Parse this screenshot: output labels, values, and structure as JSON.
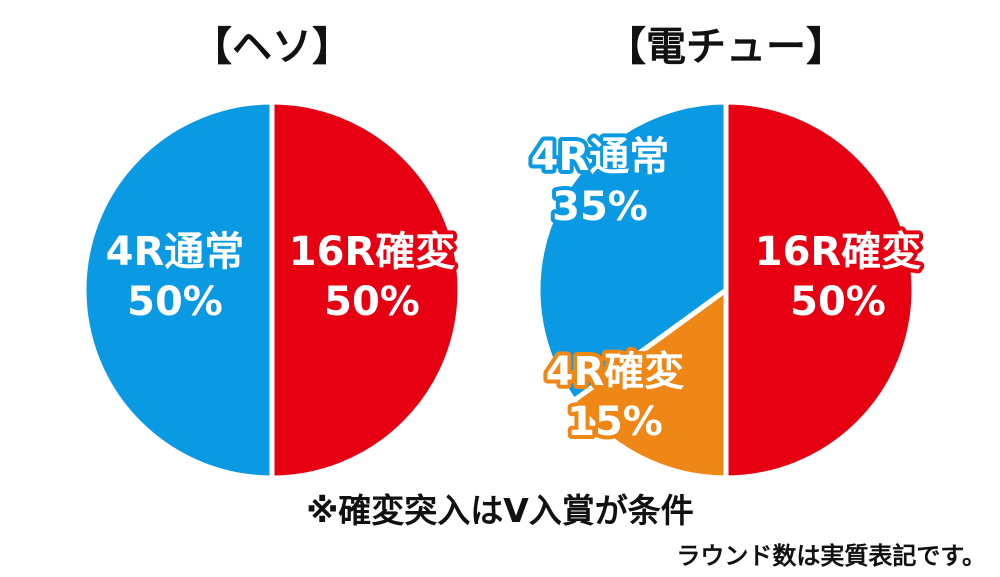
{
  "chart_data": [
    {
      "type": "pie",
      "title": "【ヘソ】",
      "slices": [
        {
          "label": "16R確変",
          "value": 50,
          "value_label": "50%",
          "color": "#e60012"
        },
        {
          "label": "4R通常",
          "value": 50,
          "value_label": "50%",
          "color": "#0a9ae4"
        }
      ]
    },
    {
      "type": "pie",
      "title": "【電チュー】",
      "slices": [
        {
          "label": "16R確変",
          "value": 50,
          "value_label": "50%",
          "color": "#e60012"
        },
        {
          "label": "4R確変",
          "value": 15,
          "value_label": "15%",
          "color": "#ee8716"
        },
        {
          "label": "4R通常",
          "value": 35,
          "value_label": "35%",
          "color": "#0a9ae4"
        }
      ]
    }
  ],
  "notes": {
    "footnote": "※確変突入はV入賞が条件",
    "caption": "ラウンド数は実質表記です。"
  }
}
